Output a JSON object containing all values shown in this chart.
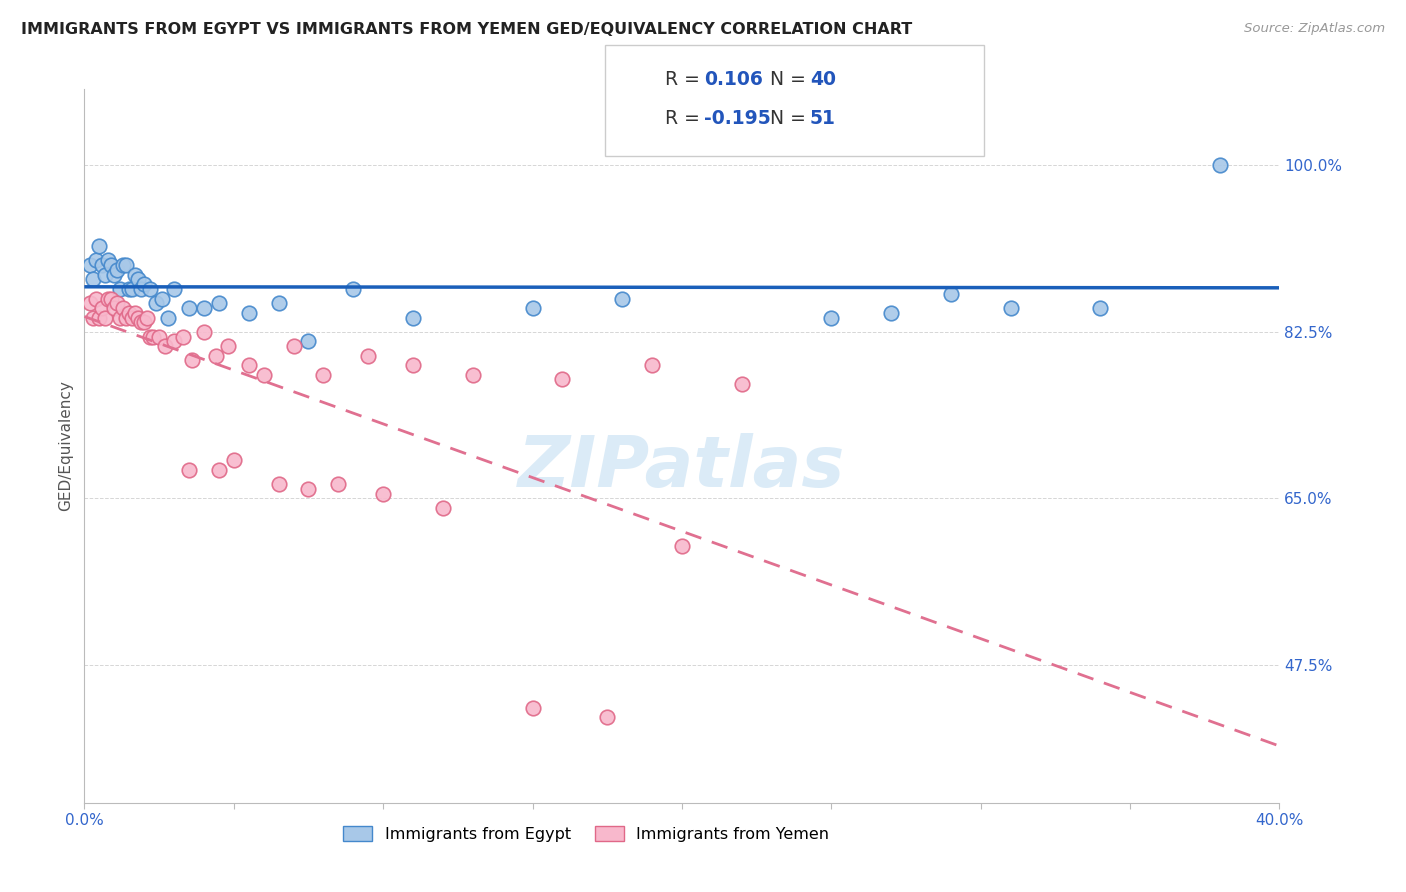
{
  "title": "IMMIGRANTS FROM EGYPT VS IMMIGRANTS FROM YEMEN GED/EQUIVALENCY CORRELATION CHART",
  "source": "Source: ZipAtlas.com",
  "ylabel": "GED/Equivalency",
  "ytick_labels": [
    "100.0%",
    "82.5%",
    "65.0%",
    "47.5%"
  ],
  "ytick_values": [
    1.0,
    0.825,
    0.65,
    0.475
  ],
  "xlim": [
    0.0,
    0.4
  ],
  "ylim": [
    0.33,
    1.08
  ],
  "egypt_color": "#a8c8e8",
  "egypt_edge_color": "#4488cc",
  "yemen_color": "#f8b8cc",
  "yemen_edge_color": "#e06888",
  "egypt_R": 0.106,
  "egypt_N": 40,
  "yemen_R": -0.195,
  "yemen_N": 51,
  "legend_label_egypt": "Immigrants from Egypt",
  "legend_label_yemen": "Immigrants from Yemen",
  "watermark": "ZIPatlas",
  "blue_line_color": "#1a5fba",
  "pink_line_color": "#e07090",
  "egypt_scatter_x": [
    0.002,
    0.003,
    0.004,
    0.005,
    0.006,
    0.007,
    0.008,
    0.009,
    0.01,
    0.011,
    0.012,
    0.013,
    0.014,
    0.015,
    0.016,
    0.017,
    0.018,
    0.019,
    0.02,
    0.022,
    0.024,
    0.026,
    0.028,
    0.03,
    0.035,
    0.04,
    0.045,
    0.055,
    0.065,
    0.075,
    0.09,
    0.11,
    0.15,
    0.18,
    0.25,
    0.27,
    0.29,
    0.31,
    0.34,
    0.38
  ],
  "egypt_scatter_y": [
    0.895,
    0.88,
    0.9,
    0.915,
    0.895,
    0.885,
    0.9,
    0.895,
    0.885,
    0.89,
    0.87,
    0.895,
    0.895,
    0.87,
    0.87,
    0.885,
    0.88,
    0.87,
    0.875,
    0.87,
    0.855,
    0.86,
    0.84,
    0.87,
    0.85,
    0.85,
    0.855,
    0.845,
    0.855,
    0.815,
    0.87,
    0.84,
    0.85,
    0.86,
    0.84,
    0.845,
    0.865,
    0.85,
    0.85,
    1.0
  ],
  "yemen_scatter_x": [
    0.002,
    0.003,
    0.004,
    0.005,
    0.006,
    0.007,
    0.008,
    0.009,
    0.01,
    0.011,
    0.012,
    0.013,
    0.014,
    0.015,
    0.016,
    0.017,
    0.018,
    0.019,
    0.02,
    0.021,
    0.022,
    0.023,
    0.025,
    0.027,
    0.03,
    0.033,
    0.036,
    0.04,
    0.044,
    0.048,
    0.055,
    0.06,
    0.07,
    0.08,
    0.095,
    0.11,
    0.13,
    0.16,
    0.19,
    0.22,
    0.035,
    0.045,
    0.05,
    0.065,
    0.075,
    0.085,
    0.1,
    0.12,
    0.15,
    0.175,
    0.2
  ],
  "yemen_scatter_y": [
    0.855,
    0.84,
    0.86,
    0.84,
    0.85,
    0.84,
    0.86,
    0.86,
    0.85,
    0.855,
    0.84,
    0.85,
    0.84,
    0.845,
    0.84,
    0.845,
    0.84,
    0.835,
    0.835,
    0.84,
    0.82,
    0.82,
    0.82,
    0.81,
    0.815,
    0.82,
    0.795,
    0.825,
    0.8,
    0.81,
    0.79,
    0.78,
    0.81,
    0.78,
    0.8,
    0.79,
    0.78,
    0.775,
    0.79,
    0.77,
    0.68,
    0.68,
    0.69,
    0.665,
    0.66,
    0.665,
    0.655,
    0.64,
    0.43,
    0.42,
    0.6
  ]
}
